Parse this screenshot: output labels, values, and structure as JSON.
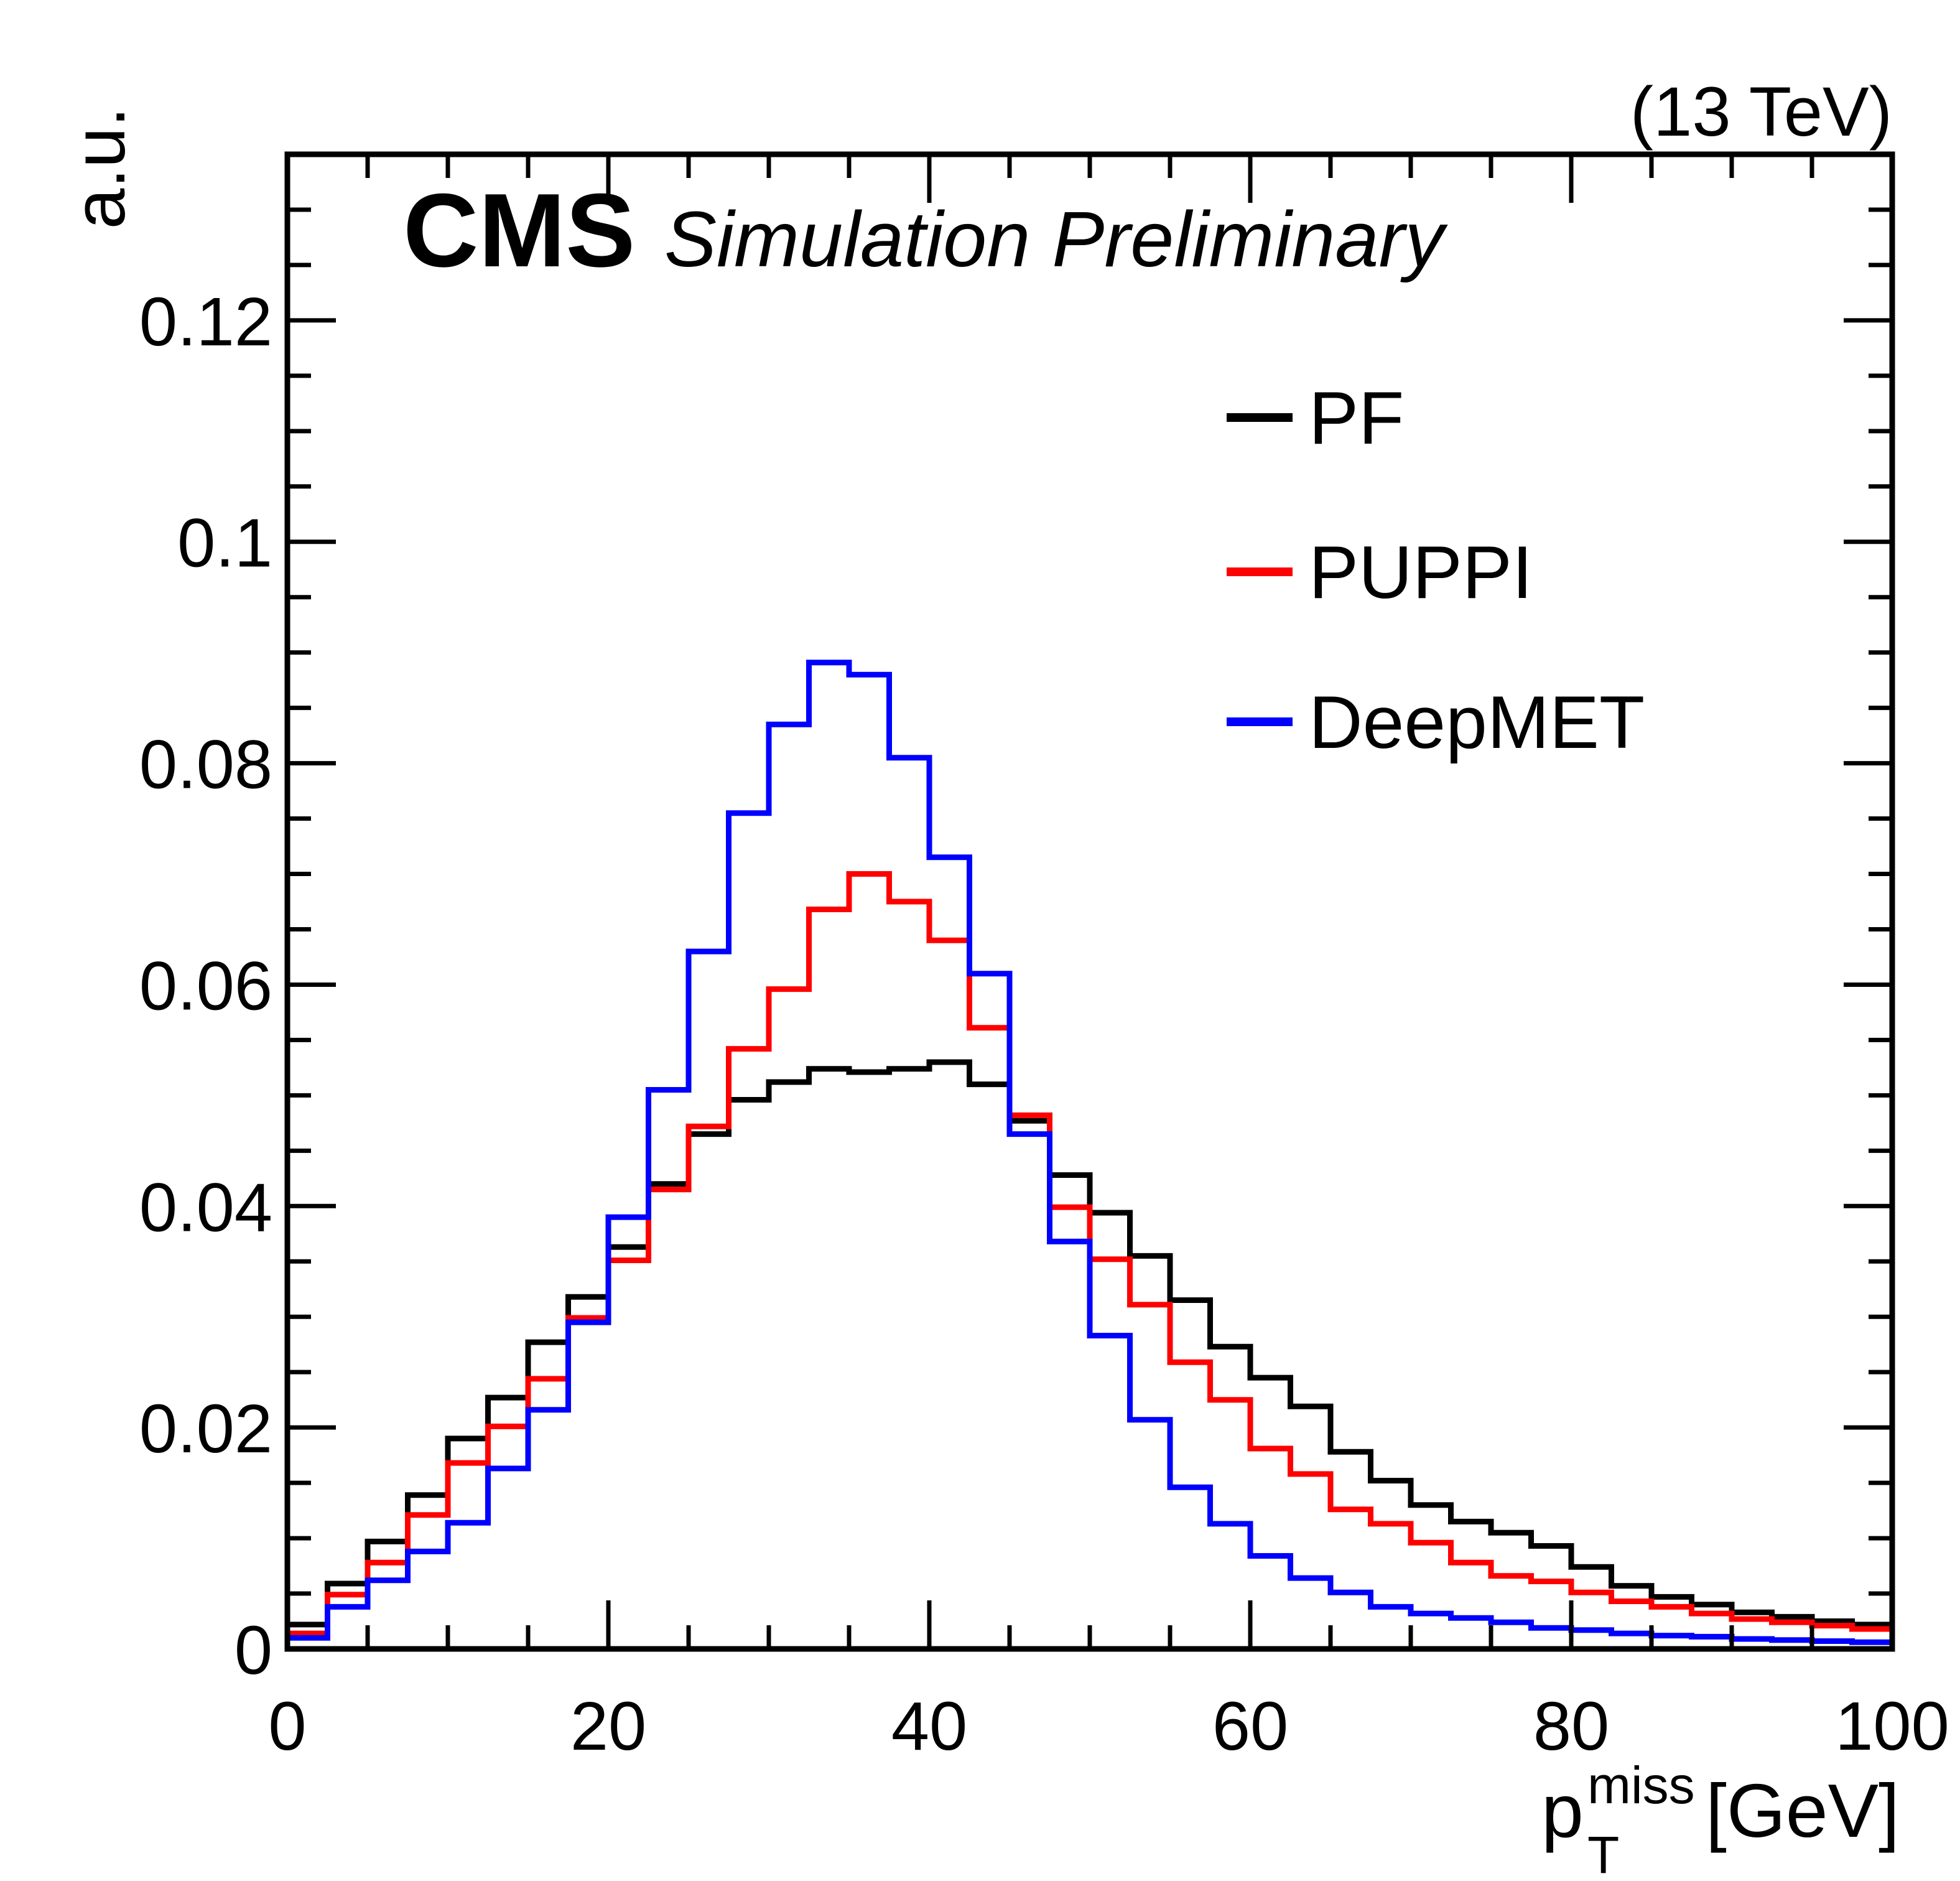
{
  "header": {
    "experiment_label": "CMS",
    "context_label": "Simulation Preliminary",
    "energy_label": "(13 TeV)"
  },
  "axes": {
    "y_title": "a.u.",
    "x_title_parts": {
      "base": "p",
      "superscript": "miss",
      "subscript": "T",
      "unit": " [GeV]"
    }
  },
  "legend": {
    "items": [
      {
        "label": "PF",
        "color": "#000000"
      },
      {
        "label": "PUPPI",
        "color": "#ff0000"
      },
      {
        "label": "DeepMET",
        "color": "#0000ff"
      }
    ]
  },
  "chart_data": {
    "type": "step-histogram",
    "title": "",
    "xlabel": "pT_miss [GeV]",
    "ylabel": "a.u.",
    "xlim": [
      0,
      100
    ],
    "ylim": [
      0,
      0.135
    ],
    "grid": false,
    "legend_position": "upper-right-inside",
    "bin_start_gev": 0,
    "bin_width_gev": 2.5,
    "n_bins": 40,
    "x_major_ticks": [
      0,
      20,
      40,
      60,
      80,
      100
    ],
    "x_major_tick_labels": [
      "0",
      "20",
      "40",
      "60",
      "80",
      "100"
    ],
    "x_minor_tick_step": 5,
    "y_major_ticks": [
      0,
      0.02,
      0.04,
      0.06,
      0.08,
      0.1,
      0.12
    ],
    "y_major_tick_labels": [
      "0",
      "0.02",
      "0.04",
      "0.06",
      "0.08",
      "0.1",
      "0.12"
    ],
    "y_minor_tick_step": 0.005,
    "series": [
      {
        "name": "PF",
        "color": "#000000",
        "values": [
          0.0022,
          0.0059,
          0.0097,
          0.0139,
          0.019,
          0.0227,
          0.0277,
          0.0318,
          0.0363,
          0.042,
          0.0465,
          0.0496,
          0.0512,
          0.0524,
          0.0521,
          0.0524,
          0.053,
          0.051,
          0.0477,
          0.0428,
          0.0394,
          0.0355,
          0.0315,
          0.0273,
          0.0245,
          0.0219,
          0.0178,
          0.0152,
          0.013,
          0.0115,
          0.0105,
          0.0093,
          0.0074,
          0.0057,
          0.0047,
          0.004,
          0.0033,
          0.0029,
          0.0025,
          0.0022
        ]
      },
      {
        "name": "PUPPI",
        "color": "#ff0000",
        "values": [
          0.0014,
          0.0049,
          0.0078,
          0.0121,
          0.0168,
          0.0201,
          0.0244,
          0.0299,
          0.0351,
          0.0415,
          0.0472,
          0.0542,
          0.0596,
          0.0668,
          0.07,
          0.0675,
          0.064,
          0.0561,
          0.0482,
          0.0399,
          0.0352,
          0.0311,
          0.0259,
          0.0225,
          0.0181,
          0.0158,
          0.0126,
          0.0113,
          0.0096,
          0.0078,
          0.0066,
          0.0061,
          0.0051,
          0.0043,
          0.0038,
          0.0032,
          0.0027,
          0.0024,
          0.0021,
          0.0018
        ]
      },
      {
        "name": "DeepMET",
        "color": "#0000ff",
        "values": [
          0.001,
          0.0038,
          0.0062,
          0.0088,
          0.0114,
          0.0163,
          0.0216,
          0.0295,
          0.039,
          0.0505,
          0.063,
          0.0755,
          0.0835,
          0.0891,
          0.088,
          0.0805,
          0.0715,
          0.061,
          0.0465,
          0.0368,
          0.0283,
          0.0207,
          0.0146,
          0.0113,
          0.0084,
          0.0064,
          0.0051,
          0.0038,
          0.0032,
          0.0028,
          0.0024,
          0.0019,
          0.0017,
          0.0014,
          0.0012,
          0.0011,
          0.0009,
          0.0008,
          0.0007,
          0.0006
        ]
      }
    ]
  }
}
